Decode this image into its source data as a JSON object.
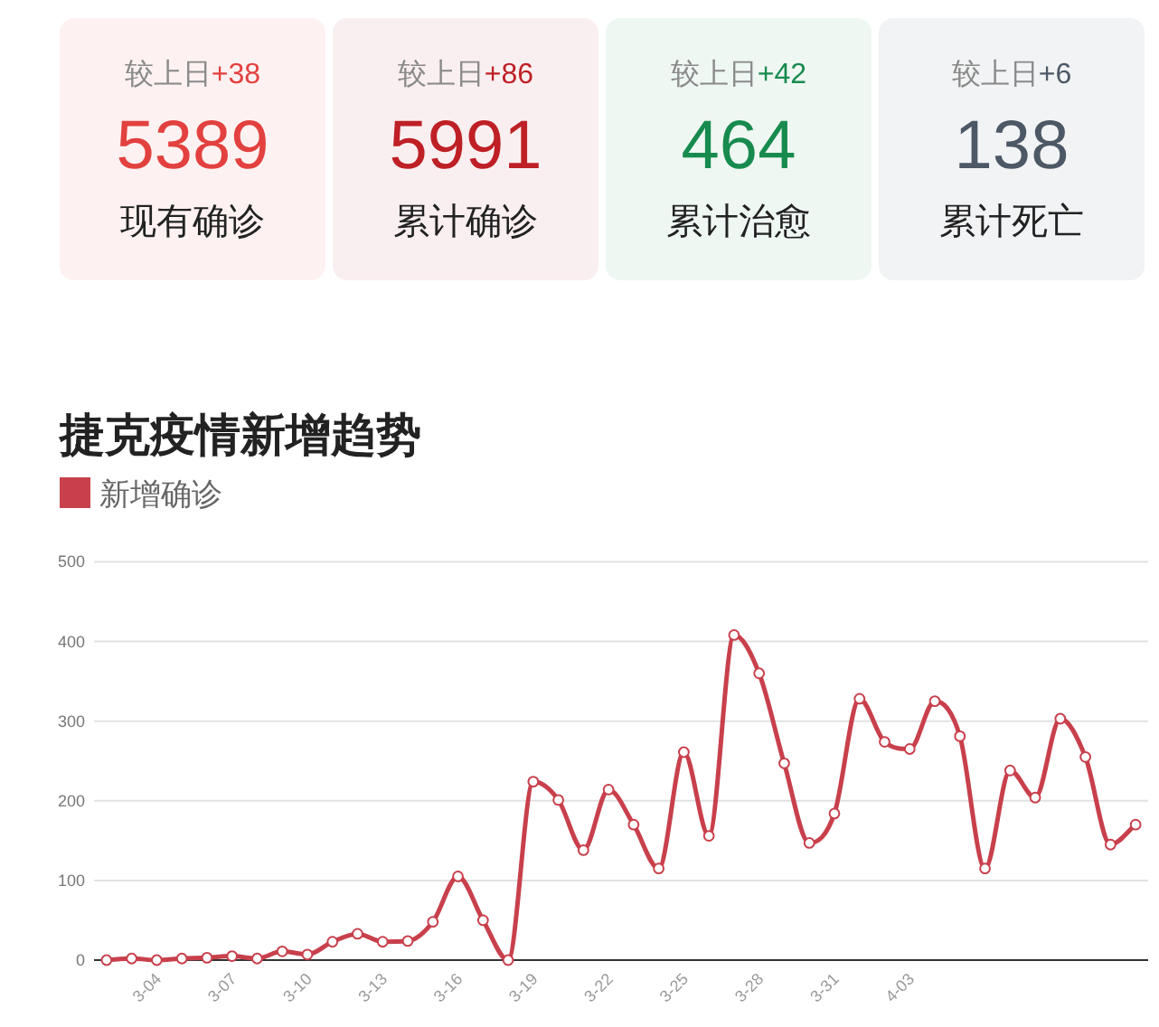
{
  "chart_data": [
    {
      "type": "other",
      "categories": [
        "现有确诊",
        "累计确诊",
        "累计治愈",
        "累计死亡"
      ],
      "values": [
        5389,
        5991,
        464,
        138
      ],
      "colors": [
        "#e2413f",
        "#be2026",
        "#178b4e",
        "#4c5865"
      ],
      "annotations": [
        "较上日+38",
        "较上日+86",
        "较上日+42",
        "较上日+6"
      ],
      "data_labels": true
    },
    {
      "type": "line",
      "title": "捷克疫情新增趋势",
      "categories": [
        null,
        null,
        "3-04",
        null,
        null,
        "3-07",
        null,
        null,
        "3-10",
        null,
        null,
        "3-13",
        null,
        null,
        "3-16",
        null,
        null,
        "3-19",
        null,
        null,
        "3-22",
        null,
        null,
        "3-25",
        null,
        null,
        "3-28",
        null,
        null,
        "3-31",
        null,
        null,
        "4-03",
        null,
        null,
        null,
        null,
        null,
        null,
        null,
        null,
        null
      ],
      "series": [
        {
          "name": "新增确诊",
          "color": "#c8404c",
          "values": [
            0,
            2,
            0,
            2,
            3,
            5,
            2,
            11,
            7,
            23,
            33,
            23,
            24,
            48,
            105,
            50,
            0,
            224,
            201,
            138,
            214,
            170,
            115,
            261,
            156,
            408,
            360,
            247,
            147,
            184,
            328,
            274,
            265,
            325,
            281,
            115,
            238,
            204,
            303,
            255,
            145,
            170
          ]
        }
      ],
      "ylim": [
        0,
        500
      ],
      "yticks": [
        0,
        100,
        200,
        300,
        400,
        500
      ],
      "grid": "y",
      "legend": "top left",
      "marker": "circle",
      "line_style": "solid"
    }
  ]
}
